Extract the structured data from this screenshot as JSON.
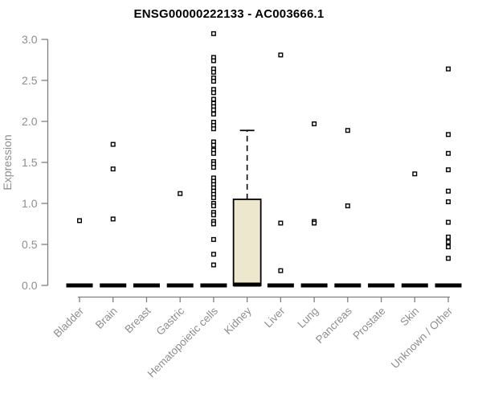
{
  "chart_data": {
    "type": "boxplot",
    "title": "ENSG00000222133 - AC003666.1",
    "ylabel": "Expression",
    "ylim": [
      0,
      3.0
    ],
    "yticks": [
      0.0,
      0.5,
      1.0,
      1.5,
      2.0,
      2.5,
      3.0
    ],
    "ytick_labels": [
      "0.0",
      "0.5",
      "1.0",
      "1.5",
      "2.0",
      "2.5",
      "3.0"
    ],
    "grid": false,
    "legend": null,
    "categories": [
      "Bladder",
      "Brain",
      "Breast",
      "Gastric",
      "Hematopoietic cells",
      "Kidney",
      "Liver",
      "Lung",
      "Pancreas",
      "Prostate",
      "Skin",
      "Unknown / Other"
    ],
    "series": [
      {
        "category": "Bladder",
        "box": {
          "min": 0,
          "q1": 0,
          "median": 0,
          "q3": 0,
          "max": 0
        },
        "points": [
          0.79
        ]
      },
      {
        "category": "Brain",
        "box": {
          "min": 0,
          "q1": 0,
          "median": 0,
          "q3": 0,
          "max": 0
        },
        "points": [
          1.72,
          1.42,
          0.81
        ]
      },
      {
        "category": "Breast",
        "box": {
          "min": 0,
          "q1": 0,
          "median": 0,
          "q3": 0,
          "max": 0
        },
        "points": []
      },
      {
        "category": "Gastric",
        "box": {
          "min": 0,
          "q1": 0,
          "median": 0,
          "q3": 0,
          "max": 0
        },
        "points": [
          1.12
        ]
      },
      {
        "category": "Hematopoietic cells",
        "box": {
          "min": 0,
          "q1": 0,
          "median": 0,
          "q3": 0,
          "max": 0
        },
        "points": [
          3.07,
          2.78,
          2.74,
          2.64,
          2.6,
          2.53,
          2.49,
          2.39,
          2.35,
          2.27,
          2.22,
          2.18,
          2.14,
          2.09,
          1.99,
          1.95,
          1.91,
          1.75,
          1.71,
          1.65,
          1.61,
          1.51,
          1.48,
          1.44,
          1.31,
          1.27,
          1.23,
          1.19,
          1.15,
          1.11,
          1.07,
          1.0,
          0.97,
          0.89,
          0.86,
          0.78,
          0.75,
          0.56,
          0.38,
          0.25
        ]
      },
      {
        "category": "Kidney",
        "box": {
          "min": 0,
          "q1": 0,
          "median": 0.01,
          "q3": 1.05,
          "max": 1.89
        },
        "points": []
      },
      {
        "category": "Liver",
        "box": {
          "min": 0,
          "q1": 0,
          "median": 0,
          "q3": 0,
          "max": 0
        },
        "points": [
          2.81,
          0.76,
          0.18
        ]
      },
      {
        "category": "Lung",
        "box": {
          "min": 0,
          "q1": 0,
          "median": 0,
          "q3": 0,
          "max": 0
        },
        "points": [
          1.97,
          0.78,
          0.76
        ]
      },
      {
        "category": "Pancreas",
        "box": {
          "min": 0,
          "q1": 0,
          "median": 0,
          "q3": 0,
          "max": 0
        },
        "points": [
          1.89,
          0.97
        ]
      },
      {
        "category": "Prostate",
        "box": {
          "min": 0,
          "q1": 0,
          "median": 0,
          "q3": 0,
          "max": 0
        },
        "points": []
      },
      {
        "category": "Skin",
        "box": {
          "min": 0,
          "q1": 0,
          "median": 0,
          "q3": 0,
          "max": 0
        },
        "points": [
          1.36
        ]
      },
      {
        "category": "Unknown / Other",
        "box": {
          "min": 0,
          "q1": 0,
          "median": 0,
          "q3": 0,
          "max": 0
        },
        "points": [
          2.64,
          1.84,
          1.61,
          1.41,
          1.15,
          1.02,
          0.77,
          0.59,
          0.53,
          0.47,
          0.33
        ]
      }
    ],
    "colors": {
      "box_fill": "#EDE8CD",
      "box_stroke": "#000000",
      "median_color": "#000000",
      "whisker_color": "#000000",
      "point_stroke": "#000000",
      "point_fill": "#FFFFFF",
      "axis": "#7F7F7F",
      "tick_label": "#8E8E8E",
      "title_color": "#000000",
      "background": "#FFFFFF"
    }
  }
}
